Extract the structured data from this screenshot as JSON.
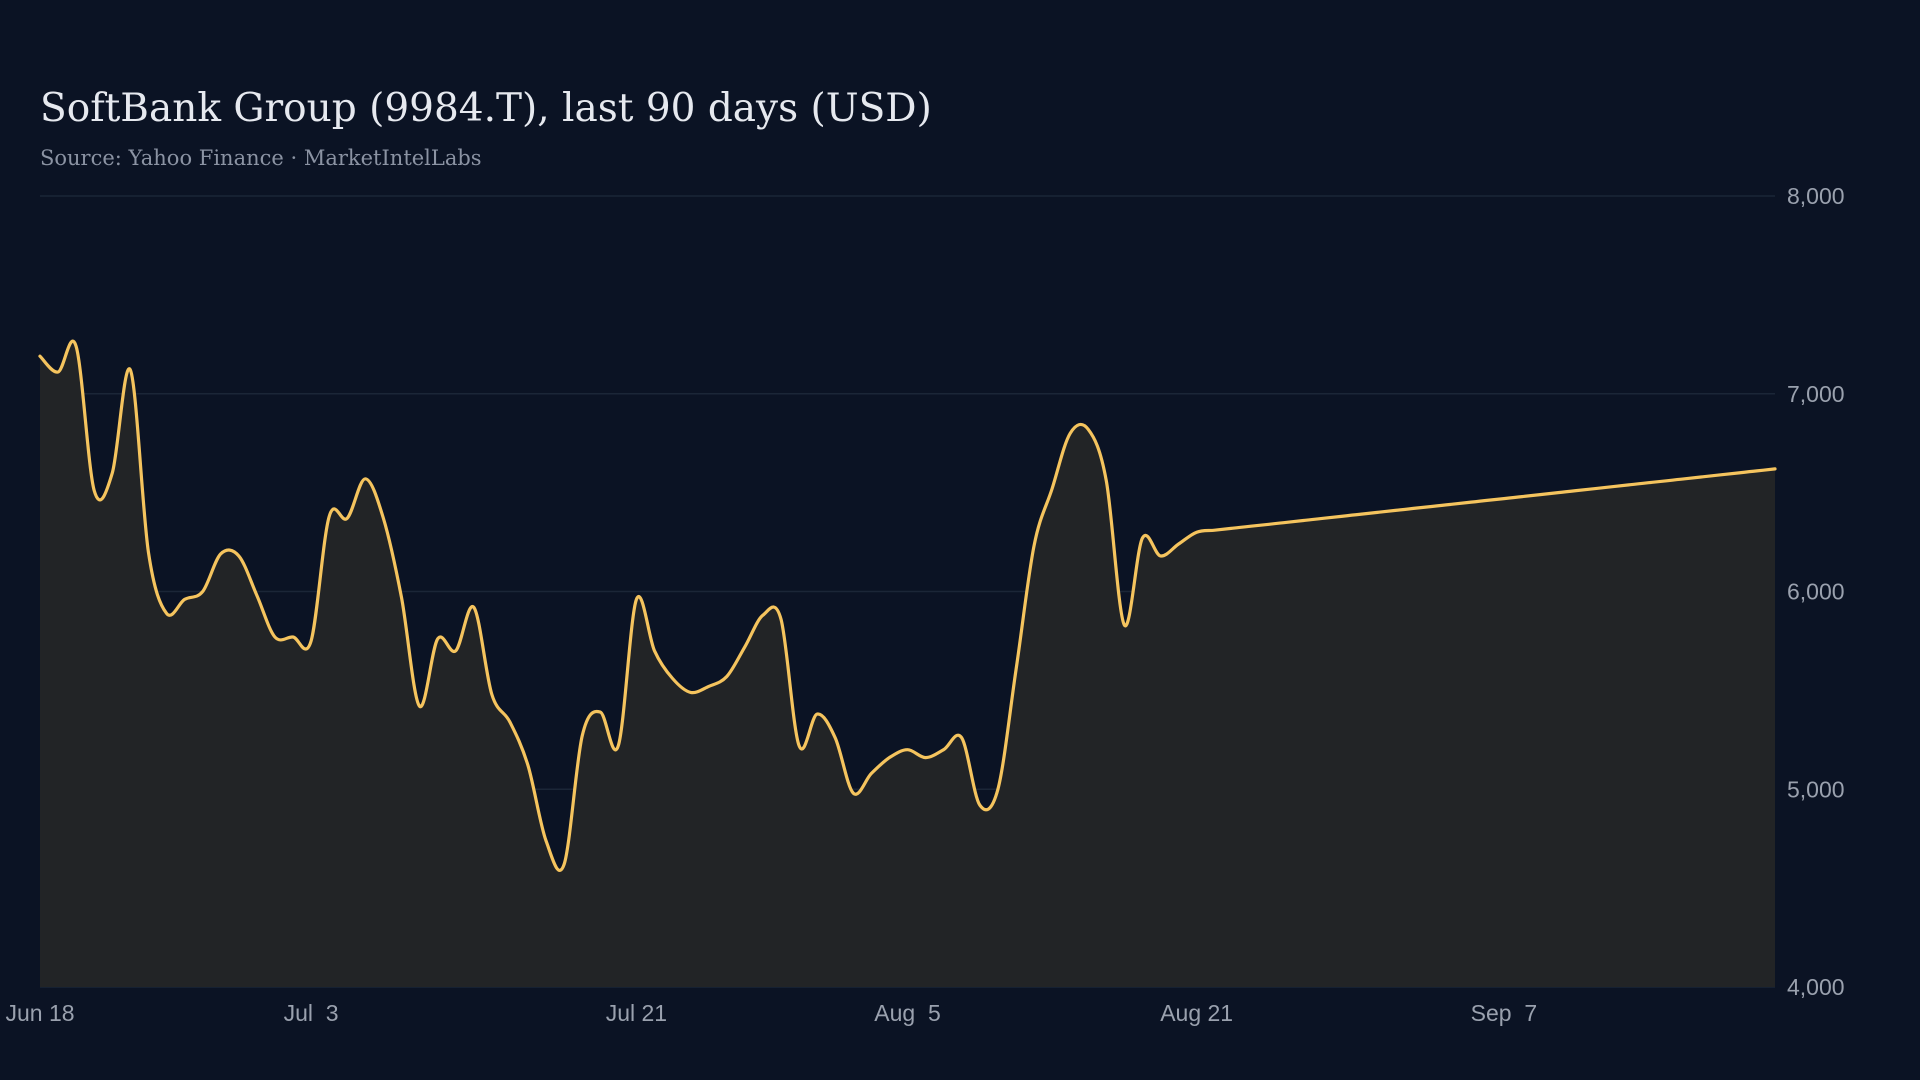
{
  "chart_data": {
    "type": "area",
    "title": "SoftBank Group (9984.T), last 90 days (USD)",
    "subtitle": "Source: Yahoo Finance · MarketIntelLabs",
    "xlabel": "",
    "ylabel": "",
    "ylim": [
      4000,
      8000
    ],
    "yticks": [
      4000,
      5000,
      6000,
      7000,
      8000
    ],
    "ytick_labels": [
      "4,000",
      "5,000",
      "6,000",
      "7,000",
      "8,000"
    ],
    "xlim": [
      "2024-06-18",
      "2024-09-22"
    ],
    "xticks": [
      "2024-06-18",
      "2024-07-03",
      "2024-07-21",
      "2024-08-05",
      "2024-08-21",
      "2024-09-07"
    ],
    "xtick_labels": [
      "Jun 18",
      "Jul  3",
      "Jul 21",
      "Aug  5",
      "Aug 21",
      "Sep  7"
    ],
    "grid": "horizontal",
    "legend": "none",
    "colors": {
      "background": "#0b1324",
      "line": "#f5c45e",
      "fill": "#222426",
      "grid": "#1b2637",
      "text": "#9aa1ae"
    },
    "series": [
      {
        "x": [
          "2024-06-18",
          "2024-06-19",
          "2024-06-20",
          "2024-06-21",
          "2024-06-22",
          "2024-06-23",
          "2024-06-24",
          "2024-06-25",
          "2024-06-26",
          "2024-06-27",
          "2024-06-28",
          "2024-06-29",
          "2024-06-30",
          "2024-07-01",
          "2024-07-02",
          "2024-07-03",
          "2024-07-04",
          "2024-07-05",
          "2024-07-06",
          "2024-07-07",
          "2024-07-08",
          "2024-07-09",
          "2024-07-10",
          "2024-07-11",
          "2024-07-12",
          "2024-07-13",
          "2024-07-14",
          "2024-07-15",
          "2024-07-16",
          "2024-07-17",
          "2024-07-18",
          "2024-07-19",
          "2024-07-20",
          "2024-07-21",
          "2024-07-22",
          "2024-07-23",
          "2024-07-24",
          "2024-07-25",
          "2024-07-26",
          "2024-07-27",
          "2024-07-28",
          "2024-07-29",
          "2024-07-30",
          "2024-07-31",
          "2024-08-01",
          "2024-08-02",
          "2024-08-03",
          "2024-08-04",
          "2024-08-05",
          "2024-08-06",
          "2024-08-07",
          "2024-08-08",
          "2024-08-09",
          "2024-08-10",
          "2024-08-11",
          "2024-08-12",
          "2024-08-13",
          "2024-08-14",
          "2024-08-15",
          "2024-08-16",
          "2024-08-17",
          "2024-08-18",
          "2024-08-19",
          "2024-08-20",
          "2024-08-21",
          "2024-08-22",
          "2024-08-23",
          "2024-08-24",
          "2024-08-25",
          "2024-08-26",
          "2024-08-27",
          "2024-08-28",
          "2024-08-29",
          "2024-08-30",
          "2024-08-31",
          "2024-09-01",
          "2024-09-02",
          "2024-09-03",
          "2024-09-04",
          "2024-09-05",
          "2024-09-06",
          "2024-09-07",
          "2024-09-08",
          "2024-09-09",
          "2024-09-10",
          "2024-09-11",
          "2024-09-12",
          "2024-09-13",
          "2024-09-14",
          "2024-09-15",
          "2024-09-16",
          "2024-09-17",
          "2024-09-18",
          "2024-09-19",
          "2024-09-20",
          "2024-09-21",
          "2024-09-22"
        ],
        "values": [
          7190,
          7110,
          7240,
          6510,
          6600,
          7120,
          6200,
          5890,
          5960,
          6000,
          6190,
          6180,
          5980,
          5770,
          5770,
          5750,
          6380,
          6370,
          6570,
          6370,
          5970,
          5420,
          5760,
          5700,
          5920,
          5480,
          5340,
          5120,
          4740,
          4620,
          5270,
          5390,
          5220,
          5960,
          5700,
          5560,
          5490,
          5520,
          5570,
          5720,
          5880,
          5860,
          5220,
          5380,
          5260,
          4980,
          5080,
          5160,
          5200,
          5160,
          5200,
          5260,
          4920,
          5000,
          5600,
          6230,
          6520,
          6800,
          6820,
          6560,
          5830,
          6270,
          6180,
          6240,
          6300,
          6310,
          6320,
          6330,
          6340,
          6350,
          6360,
          6370,
          6380,
          6390,
          6400,
          6410,
          6420,
          6430,
          6440,
          6450,
          6460,
          6470,
          6480,
          6490,
          6500,
          6510,
          6520,
          6530,
          6540,
          6550,
          6560,
          6570,
          6580,
          6590,
          6600,
          6610,
          6620
        ]
      }
    ]
  }
}
